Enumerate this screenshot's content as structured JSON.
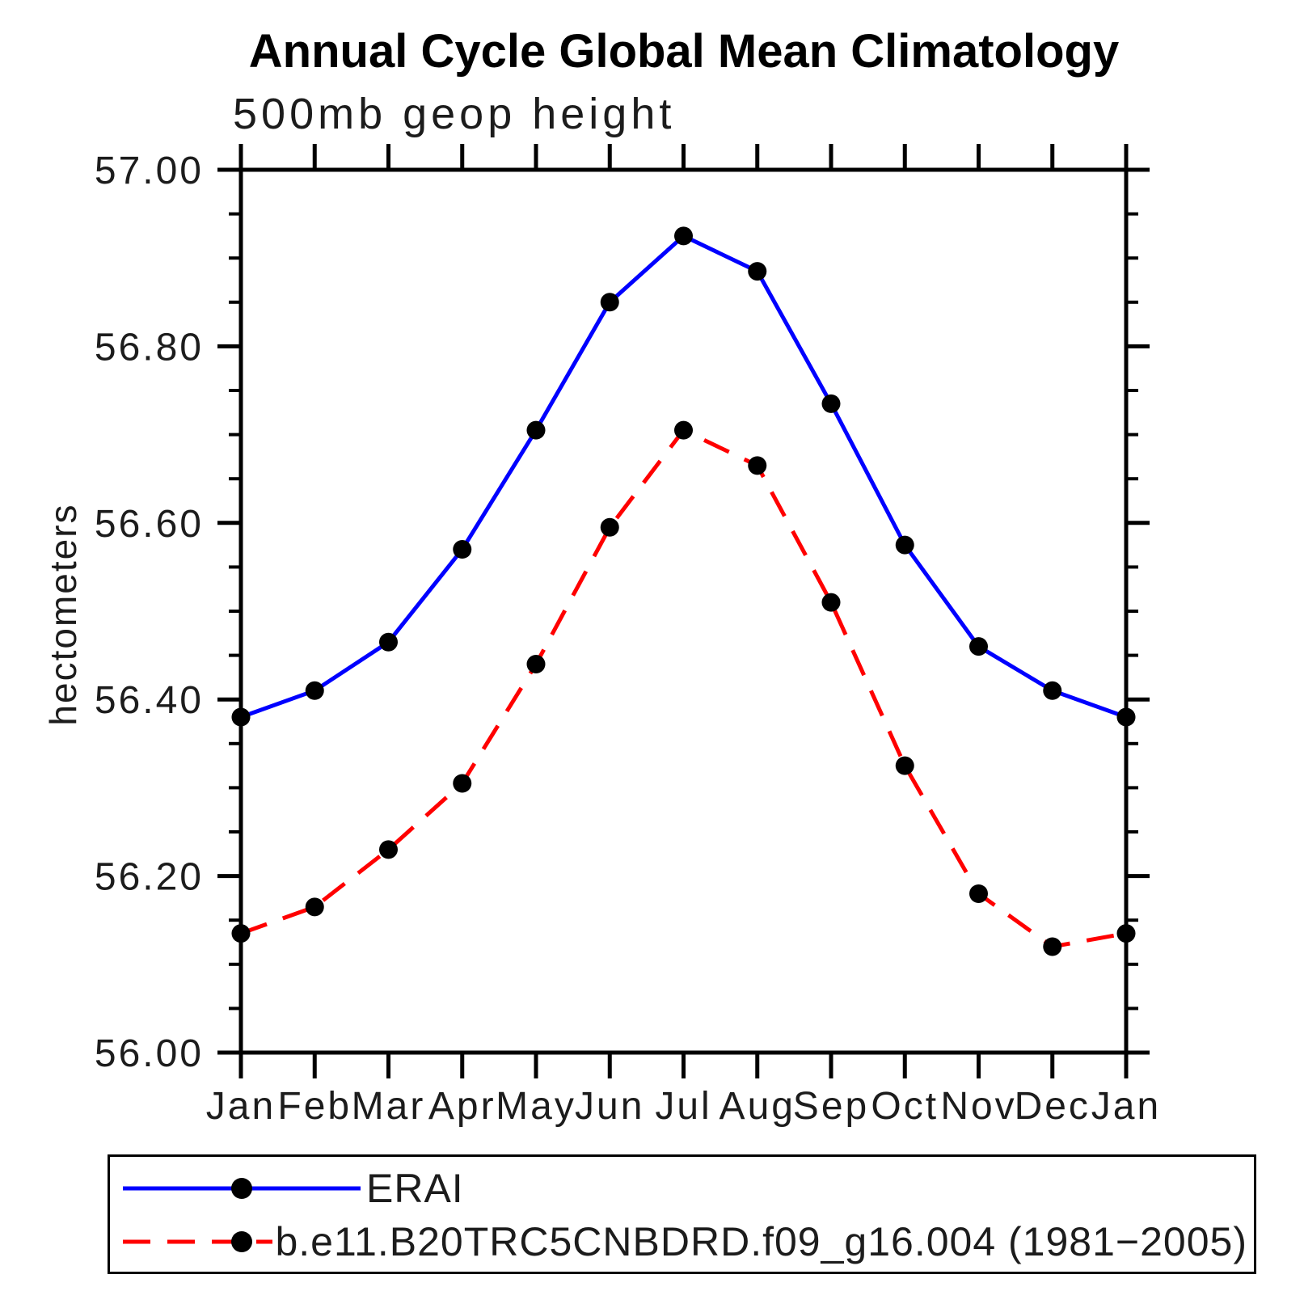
{
  "chart_data": {
    "type": "line",
    "title": "Annual Cycle Global Mean Climatology",
    "subtitle": "500mb geop height",
    "ylabel": "hectometers",
    "xlabel": "",
    "categories": [
      "Jan",
      "Feb",
      "Mar",
      "Apr",
      "May",
      "Jun",
      "Jul",
      "Aug",
      "Sep",
      "Oct",
      "Nov",
      "Dec",
      "Jan"
    ],
    "series": [
      {
        "name": "ERAI",
        "color": "#0000ff",
        "line_style": "solid",
        "marker": "circle",
        "marker_color": "#000000",
        "values": [
          56.38,
          56.41,
          56.465,
          56.57,
          56.705,
          56.85,
          56.925,
          56.885,
          56.735,
          56.575,
          56.46,
          56.41,
          56.38
        ]
      },
      {
        "name": "b.e11.B20TRC5CNBDRD.f09_g16.004 (1981−2005)",
        "color": "#ff0000",
        "line_style": "dashed",
        "marker": "circle",
        "marker_color": "#000000",
        "values": [
          56.135,
          56.165,
          56.23,
          56.305,
          56.44,
          56.595,
          56.705,
          56.665,
          56.51,
          56.325,
          56.18,
          56.12,
          56.135
        ]
      }
    ],
    "ylim": [
      56.0,
      57.0
    ],
    "y_major_ticks": [
      {
        "label": "56.00",
        "value": 56.0
      },
      {
        "label": "56.20",
        "value": 56.2
      },
      {
        "label": "56.40",
        "value": 56.4
      },
      {
        "label": "56.60",
        "value": 56.6
      },
      {
        "label": "56.80",
        "value": 56.8
      },
      {
        "label": "57.00",
        "value": 57.0
      }
    ],
    "y_minor_step": 0.05,
    "grid": false,
    "legend_position": "bottom",
    "axis_color": "#000000"
  }
}
